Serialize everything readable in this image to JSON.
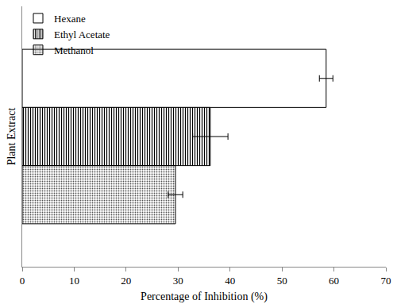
{
  "chart_data": {
    "type": "bar",
    "orientation": "horizontal",
    "categories": [
      null
    ],
    "series": [
      {
        "name": "Hexane",
        "color": "#ffffff",
        "values": [
          58.5
        ],
        "error": [
          1.3
        ]
      },
      {
        "name": "Ethyl Acetate",
        "color": "#ffffff",
        "values": [
          36.2
        ],
        "error": [
          3.4
        ]
      },
      {
        "name": "Methanol",
        "color": "#d9d9d9",
        "values": [
          29.5
        ],
        "error": [
          1.4
        ]
      }
    ],
    "x_label": "Percentage of Inhibition (%)",
    "y_label": "Plant Extract",
    "xlim": [
      0,
      70
    ],
    "xticks": [
      0,
      10,
      20,
      30,
      40,
      50,
      60,
      70
    ],
    "tick_labels": "x",
    "grid": false,
    "legend": "upper left"
  }
}
